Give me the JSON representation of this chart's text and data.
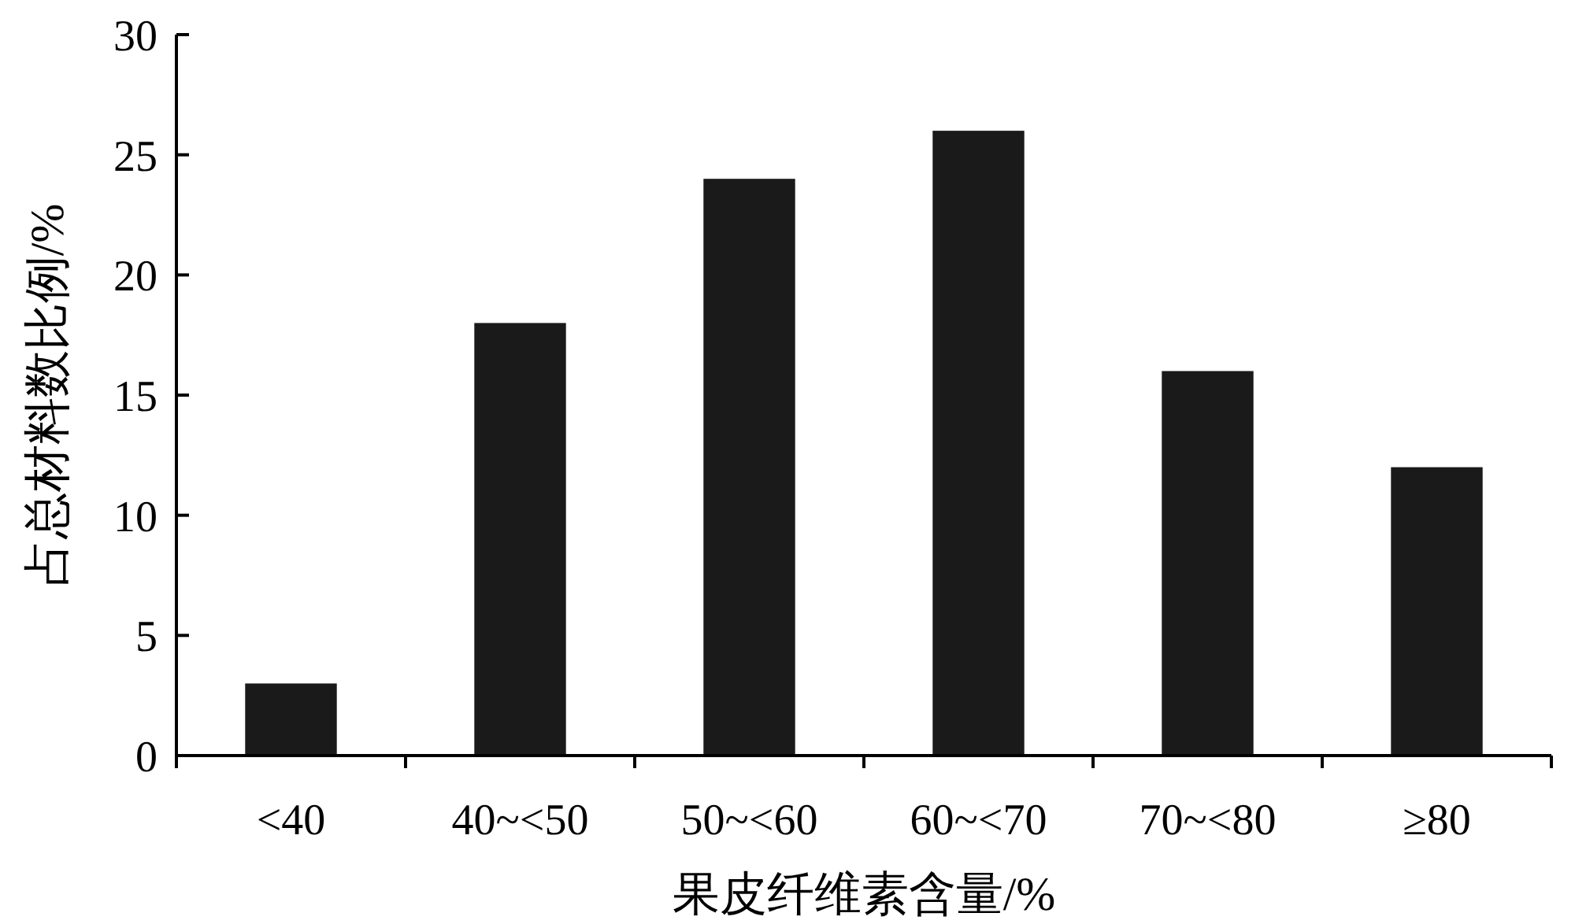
{
  "chart_data": {
    "type": "bar",
    "categories": [
      "<40",
      "40~<50",
      "50~<60",
      "60~<70",
      "70~<80",
      "≥80"
    ],
    "values": [
      3,
      18,
      24,
      26,
      16,
      12
    ],
    "color": "#1a1a1a",
    "ylim": [
      0,
      30
    ],
    "yticks": [
      0,
      5,
      10,
      15,
      20,
      25,
      30
    ],
    "xlabel": "果皮纤维素含量/%",
    "ylabel": "占总材料数比例/%",
    "grid": false
  }
}
